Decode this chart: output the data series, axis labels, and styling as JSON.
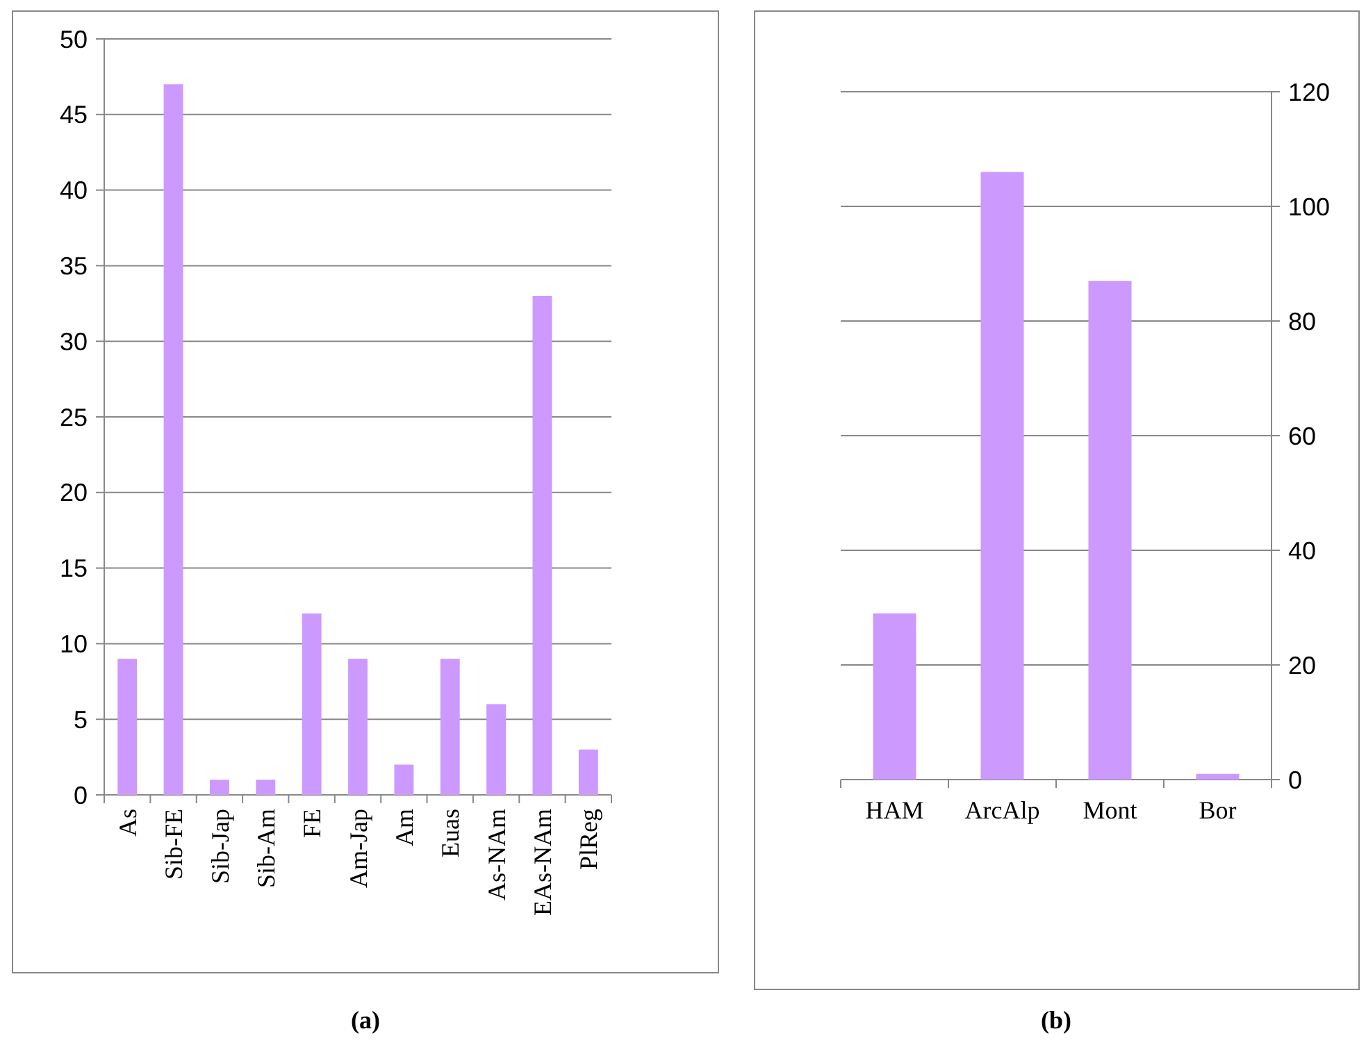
{
  "chart_data": [
    {
      "type": "bar",
      "title": "(a)",
      "categories": [
        "As",
        "Sib-FE",
        "Sib-Jap",
        "Sib-Am",
        "FE",
        "Am-Jap",
        "Am",
        "Euas",
        "As-NAm",
        "EAs-NAm",
        "PlReg"
      ],
      "series": [
        {
          "color": "#cc99ff",
          "values": [
            9,
            47,
            1,
            1,
            12,
            9,
            2,
            9,
            6,
            33,
            3
          ]
        }
      ],
      "ylim": [
        0,
        50
      ],
      "yticks": [
        0,
        5,
        10,
        15,
        20,
        25,
        30,
        35,
        40,
        45,
        50
      ],
      "grid": "y"
    },
    {
      "type": "bar",
      "title": "(b)",
      "categories": [
        "HAM",
        "ArcAlp",
        "Mont",
        "Bor"
      ],
      "series": [
        {
          "color": "#cc99ff",
          "values": [
            29,
            106,
            87,
            1
          ],
          "axis": "y2"
        }
      ],
      "y2lim": [
        0,
        120
      ],
      "y2ticks": [
        0,
        20,
        40,
        60,
        80,
        100,
        120
      ],
      "grid": "y"
    }
  ]
}
